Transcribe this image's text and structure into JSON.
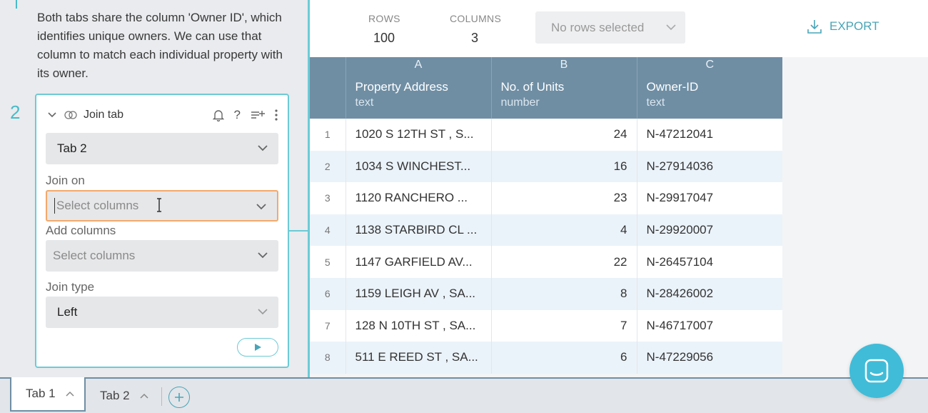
{
  "left": {
    "description": "Both tabs share the column 'Owner ID', which identifies unique owners. We can use that column to match each individual property with its owner.",
    "step_number": "2",
    "card": {
      "title": "Join tab",
      "tab_select": "Tab 2",
      "join_on_label": "Join on",
      "join_on_placeholder": "Select columns",
      "add_columns_label": "Add columns",
      "add_columns_placeholder": "Select columns",
      "join_type_label": "Join type",
      "join_type_value": "Left"
    }
  },
  "toolbar": {
    "rows_label": "ROWS",
    "rows_value": "100",
    "columns_label": "COLUMNS",
    "columns_value": "3",
    "rows_selected": "No rows selected",
    "export_label": "EXPORT"
  },
  "table": {
    "letters": [
      "A",
      "B",
      "C"
    ],
    "columns": [
      {
        "name": "Property Address",
        "type": "text"
      },
      {
        "name": "No. of Units",
        "type": "number"
      },
      {
        "name": "Owner-ID",
        "type": "text"
      }
    ],
    "rows": [
      [
        "1",
        "1020 S 12TH ST , S...",
        "24",
        "N-47212041"
      ],
      [
        "2",
        "1034 S WINCHEST...",
        "16",
        "N-27914036"
      ],
      [
        "3",
        "1120 RANCHERO ...",
        "23",
        "N-29917047"
      ],
      [
        "4",
        "1138 STARBIRD CL ...",
        "4",
        "N-29920007"
      ],
      [
        "5",
        "1147 GARFIELD AV...",
        "22",
        "N-26457104"
      ],
      [
        "6",
        "1159 LEIGH AV , SA...",
        "8",
        "N-28426002"
      ],
      [
        "7",
        "128 N 10TH ST , SA...",
        "7",
        "N-46717007"
      ],
      [
        "8",
        "511 E REED ST , SA...",
        "6",
        "N-47229056"
      ]
    ]
  },
  "tabs": [
    {
      "label": "Tab 1"
    },
    {
      "label": "Tab 2"
    }
  ],
  "colors": {
    "accent": "#48bbc8",
    "header": "#6f8ea4",
    "focus": "#f3a96b"
  }
}
